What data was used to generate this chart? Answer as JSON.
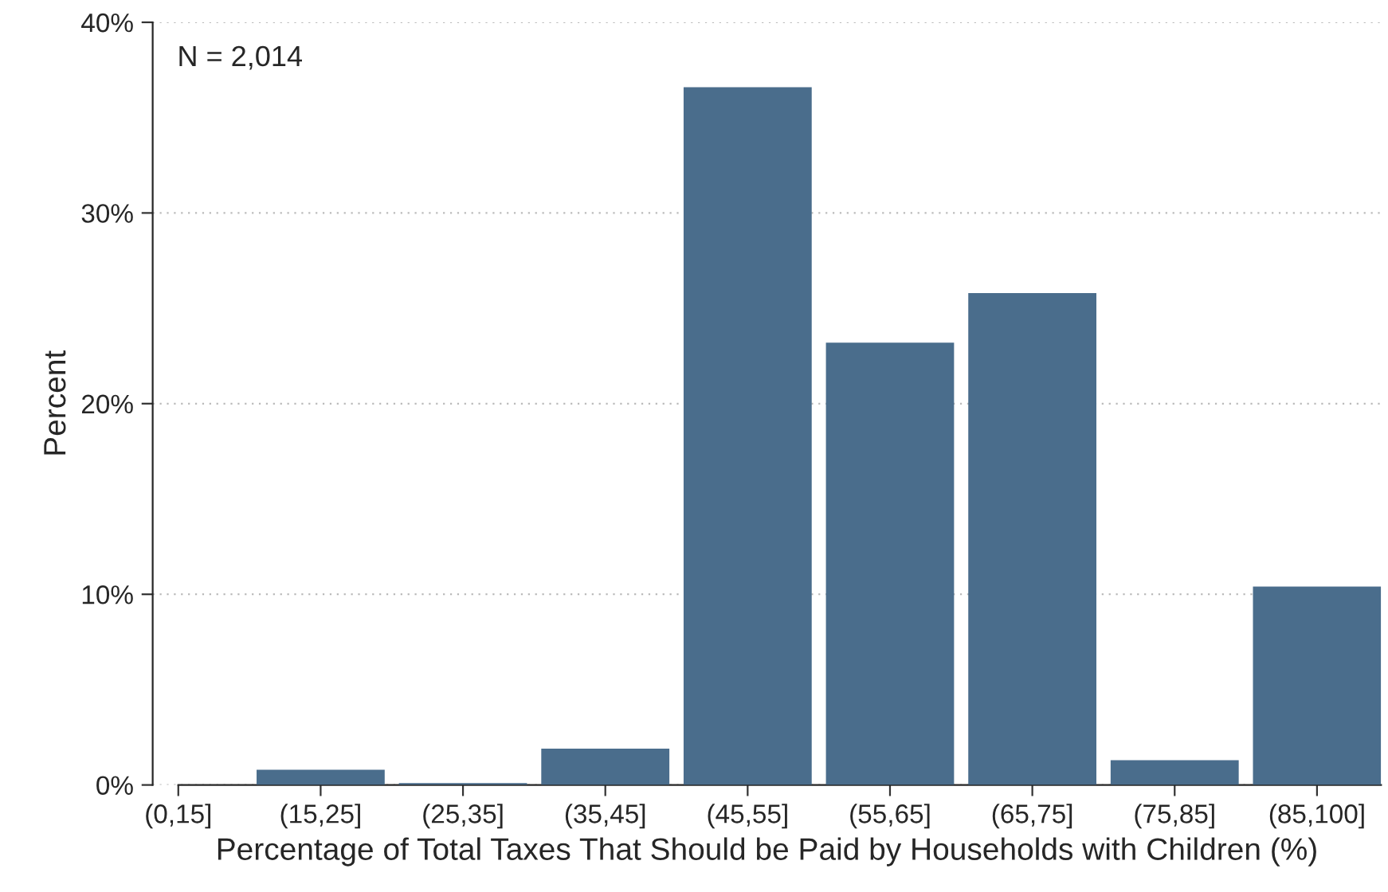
{
  "chart_data": {
    "type": "bar",
    "xlabel": "Percentage of Total Taxes That Should be Paid by Households with Children (%)",
    "ylabel": "Percent",
    "categories": [
      "(0,15]",
      "(15,25]",
      "(25,35]",
      "(35,45]",
      "(45,55]",
      "(55,65]",
      "(65,75]",
      "(75,85]",
      "(85,100]"
    ],
    "values": [
      null,
      0.8,
      0.1,
      1.9,
      36.6,
      23.2,
      25.8,
      1.3,
      10.4
    ],
    "color": "#4a6d8c",
    "ylim": [
      0,
      40
    ],
    "yticks": [
      {
        "value": 0,
        "label": "0%"
      },
      {
        "value": 10,
        "label": "10%"
      },
      {
        "value": 20,
        "label": "20%"
      },
      {
        "value": 30,
        "label": "30%"
      },
      {
        "value": 40,
        "label": "40%"
      }
    ],
    "grid": "y",
    "annotations": [
      "N = 2,014"
    ]
  }
}
